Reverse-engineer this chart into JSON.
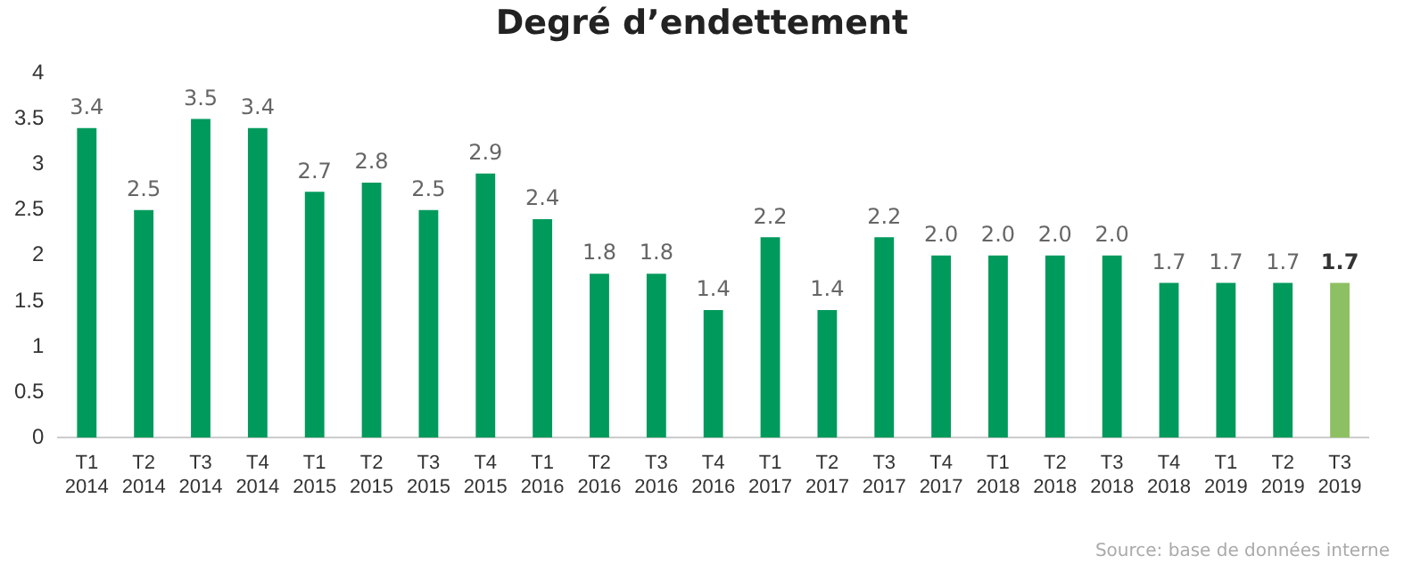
{
  "chart_data": {
    "type": "bar",
    "title": "Degré d’endettement",
    "categories": [
      "T1 2014",
      "T2 2014",
      "T3 2014",
      "T4 2014",
      "T1 2015",
      "T2 2015",
      "T3 2015",
      "T4 2015",
      "T1 2016",
      "T2 2016",
      "T3 2016",
      "T4 2016",
      "T1 2017",
      "T2 2017",
      "T3 2017",
      "T4 2017",
      "T1 2018",
      "T2 2018",
      "T3 2018",
      "T4 2018",
      "T1 2019",
      "T2 2019",
      "T3 2019"
    ],
    "values": [
      3.4,
      2.5,
      3.5,
      3.4,
      2.7,
      2.8,
      2.5,
      2.9,
      2.4,
      1.8,
      1.8,
      1.4,
      2.2,
      1.4,
      2.2,
      2.0,
      2.0,
      2.0,
      2.0,
      1.7,
      1.7,
      1.7,
      1.7
    ],
    "value_labels": [
      "3.4",
      "2.5",
      "3.5",
      "3.4",
      "2.7",
      "2.8",
      "2.5",
      "2.9",
      "2.4",
      "1.8",
      "1.8",
      "1.4",
      "2.2",
      "1.4",
      "2.2",
      "2.0",
      "2.0",
      "2.0",
      "2.0",
      "1.7",
      "1.7",
      "1.7",
      "1.7"
    ],
    "colors": [
      "#009a5c",
      "#009a5c",
      "#009a5c",
      "#009a5c",
      "#009a5c",
      "#009a5c",
      "#009a5c",
      "#009a5c",
      "#009a5c",
      "#009a5c",
      "#009a5c",
      "#009a5c",
      "#009a5c",
      "#009a5c",
      "#009a5c",
      "#009a5c",
      "#009a5c",
      "#009a5c",
      "#009a5c",
      "#009a5c",
      "#009a5c",
      "#009a5c",
      "#8dc063"
    ],
    "ylim": [
      0,
      4
    ],
    "yticks": [
      0,
      0.5,
      1,
      1.5,
      2,
      2.5,
      3,
      3.5,
      4
    ],
    "grid": false,
    "legend": false,
    "annotations": [
      "Source: base de données interne"
    ]
  }
}
